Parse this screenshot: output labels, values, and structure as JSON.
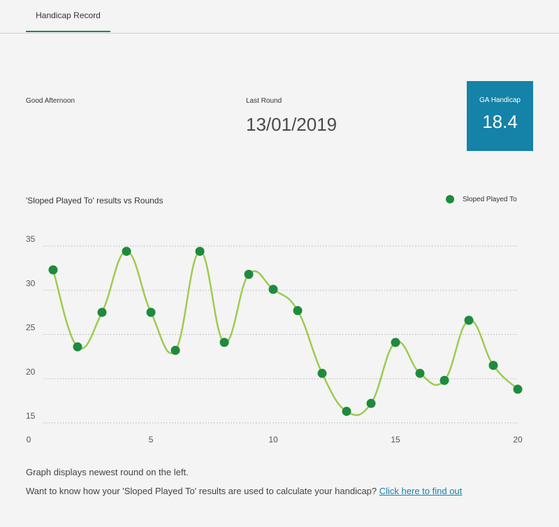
{
  "tabs": [
    {
      "label": "Handicap Record",
      "active": true
    }
  ],
  "header": {
    "greeting": "Good Afternoon",
    "last_round_label": "Last Round",
    "last_round_value": "13/01/2019",
    "handicap_label": "GA Handicap",
    "handicap_value": "18.4"
  },
  "colors": {
    "accent": "#1f8a3e",
    "handicap_box": "#1582a7",
    "line": "#9ccc4f"
  },
  "chart_data": {
    "type": "line",
    "title": "'Sloped Played To' results vs Rounds",
    "legend": {
      "position": "top-right",
      "label": "Sloped Played To"
    },
    "series": [
      {
        "name": "Sloped Played To",
        "x": [
          1,
          2,
          3,
          4,
          5,
          6,
          7,
          8,
          9,
          10,
          11,
          12,
          13,
          14,
          15,
          16,
          17,
          18,
          19,
          20
        ],
        "values": [
          32.3,
          23.6,
          27.5,
          34.4,
          27.5,
          23.2,
          34.4,
          24.1,
          31.8,
          30.1,
          27.7,
          20.6,
          16.3,
          17.2,
          24.1,
          20.6,
          19.8,
          26.6,
          21.5,
          18.8
        ]
      }
    ],
    "xlim": [
      0,
      20
    ],
    "ylim": [
      15,
      35
    ],
    "xticks": [
      "0",
      "5",
      "10",
      "15",
      "20"
    ],
    "yticks": [
      "15",
      "20",
      "25",
      "30",
      "35"
    ],
    "grid": "horizontal-dotted"
  },
  "footer": {
    "note": "Graph displays newest round on the left.",
    "question": "Want to know how your 'Sloped Played To' results are used to calculate your handicap? ",
    "link_label": "Click here to find out"
  }
}
